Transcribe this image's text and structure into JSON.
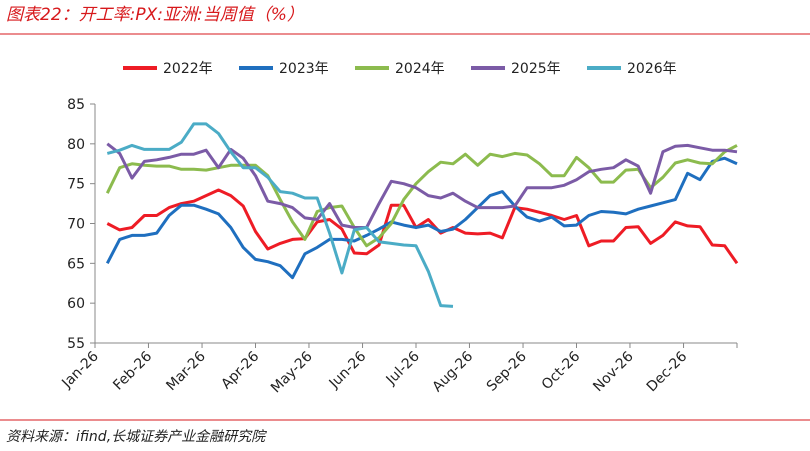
{
  "chart_data": {
    "type": "line",
    "title": "图表22：开工率:PX:亚洲:当周值（%）",
    "source": "资料来源：ifind,长城证券产业金融研究院",
    "x": [
      1,
      2,
      3,
      4,
      5,
      6,
      7,
      8,
      9,
      10,
      11,
      12,
      13,
      14,
      15,
      16,
      17,
      18,
      19,
      20,
      21,
      22,
      23,
      24,
      25,
      26,
      27,
      28,
      29,
      30,
      31,
      32,
      33,
      34,
      35,
      36,
      37,
      38,
      39,
      40,
      41,
      42,
      43,
      44,
      45,
      46,
      47,
      48,
      49,
      50,
      51,
      52
    ],
    "xlim": [
      0,
      52
    ],
    "xticks": [
      {
        "value": 0,
        "label": "Jan-26"
      },
      {
        "value": 4.33,
        "label": "Feb-26"
      },
      {
        "value": 8.67,
        "label": "Mar-26"
      },
      {
        "value": 13,
        "label": "Apr-26"
      },
      {
        "value": 17.33,
        "label": "May-26"
      },
      {
        "value": 21.67,
        "label": "Jun-26"
      },
      {
        "value": 26,
        "label": "Jul-26"
      },
      {
        "value": 30.33,
        "label": "Aug-26"
      },
      {
        "value": 34.67,
        "label": "Sep-26"
      },
      {
        "value": 39,
        "label": "Oct-26"
      },
      {
        "value": 43.33,
        "label": "Nov-26"
      },
      {
        "value": 47.67,
        "label": "Dec-26"
      }
    ],
    "ylim": [
      55,
      85
    ],
    "yticks": [
      55,
      60,
      65,
      70,
      75,
      80,
      85
    ],
    "grid": false,
    "legend": "top",
    "series": [
      {
        "name": "2022年",
        "color": "#ee1c25",
        "values": [
          70,
          69.2,
          69.5,
          71,
          71,
          72,
          72.5,
          72.8,
          73.5,
          74.2,
          73.5,
          72.2,
          69,
          66.8,
          67.5,
          68,
          68.1,
          70.2,
          70.5,
          69.3,
          66.3,
          66.2,
          67.3,
          72.3,
          72.3,
          69.5,
          70.5,
          68.8,
          69.5,
          68.8,
          68.7,
          68.8,
          68.2,
          72,
          71.8,
          71.4,
          71,
          70.5,
          71,
          67.2,
          67.8,
          67.8,
          69.5,
          69.6,
          67.5,
          68.5,
          70.2,
          69.7,
          69.6,
          67.3,
          67.2,
          65
        ]
      },
      {
        "name": "2023年",
        "color": "#1f6fbf",
        "values": [
          65,
          68,
          68.5,
          68.5,
          68.8,
          71,
          72.3,
          72.3,
          71.8,
          71.2,
          69.5,
          67,
          65.5,
          65.2,
          64.7,
          63.2,
          66.2,
          67,
          68,
          68,
          67.8,
          68.5,
          69.3,
          70.2,
          69.8,
          69.5,
          69.8,
          69,
          69.3,
          70.5,
          72,
          73.5,
          74,
          72.2,
          70.8,
          70.3,
          70.8,
          69.7,
          69.8,
          71,
          71.5,
          71.4,
          71.2,
          71.8,
          72.2,
          72.6,
          73,
          76.3,
          75.5,
          77.8,
          78.2,
          77.5
        ]
      },
      {
        "name": "2024年",
        "color": "#8cbb4e",
        "values": [
          73.8,
          77,
          77.5,
          77.3,
          77.2,
          77.2,
          76.8,
          76.8,
          76.7,
          77,
          77.3,
          77.3,
          77.3,
          76,
          73,
          70.2,
          68,
          71.5,
          72,
          72.2,
          69.5,
          67.2,
          68.2,
          70,
          73,
          75,
          76.5,
          77.7,
          77.5,
          78.7,
          77.3,
          78.7,
          78.4,
          78.8,
          78.6,
          77.5,
          76,
          76,
          78.3,
          77,
          75.2,
          75.2,
          76.7,
          76.8,
          74.5,
          75.8,
          77.6,
          78,
          77.6,
          77.5,
          79,
          79.8
        ]
      },
      {
        "name": "2025年",
        "color": "#7b5ba6",
        "values": [
          80,
          78.8,
          75.7,
          77.8,
          78,
          78.3,
          78.7,
          78.7,
          79.2,
          77,
          79.3,
          78.2,
          76,
          72.8,
          72.5,
          72,
          70.7,
          70.5,
          72.5,
          69.8,
          69.5,
          69.5,
          72.5,
          75.3,
          75,
          74.5,
          73.5,
          73.2,
          73.8,
          72.8,
          72,
          72,
          72,
          72.2,
          74.5,
          74.5,
          74.5,
          74.8,
          75.5,
          76.5,
          76.8,
          77,
          78,
          77.2,
          73.8,
          79,
          79.7,
          79.8,
          79.5,
          79.2,
          79.2,
          79
        ]
      },
      {
        "name": "2026年",
        "color": "#4bacc6",
        "values": [
          78.8,
          79.2,
          79.8,
          79.3,
          79.3,
          79.3,
          80.2,
          82.5,
          82.5,
          81.3,
          79,
          77,
          77,
          75.8,
          74,
          73.8,
          73.2,
          73.2,
          68.8,
          63.8,
          69.2,
          69.5,
          67.7,
          67.5,
          67.3,
          67.2,
          64,
          59.7,
          59.6,
          null,
          null,
          null,
          null,
          null,
          null,
          null,
          null,
          null,
          null,
          null,
          null,
          null,
          null,
          null,
          null,
          null,
          null,
          null,
          null,
          null,
          null,
          null
        ]
      }
    ]
  }
}
